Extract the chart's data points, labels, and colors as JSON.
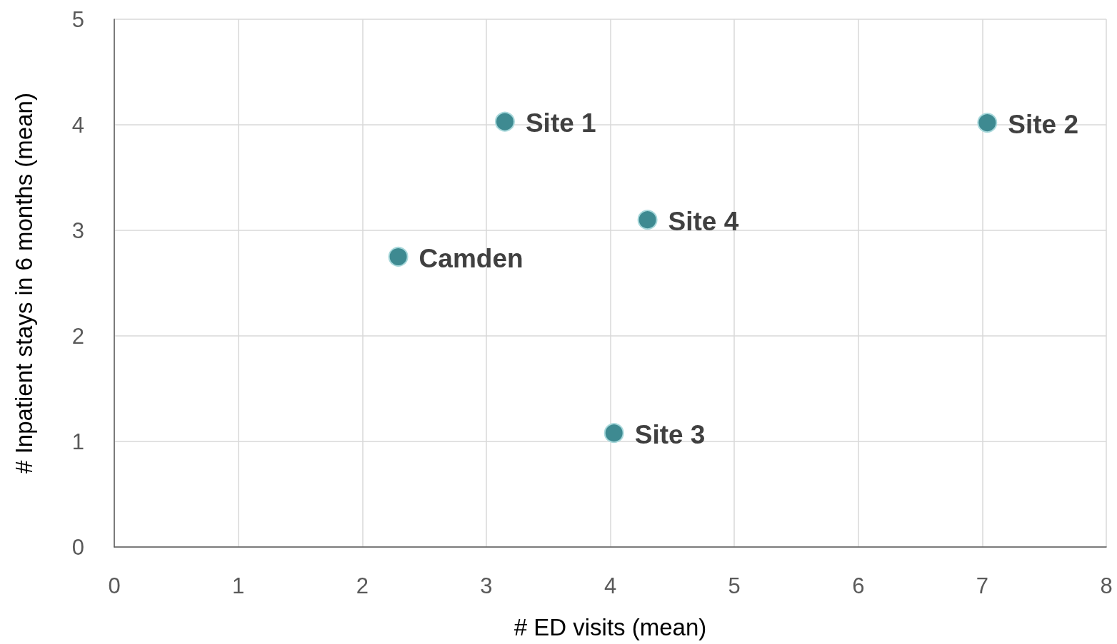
{
  "chart_data": {
    "type": "scatter",
    "xlabel": "# ED visits (mean)",
    "ylabel": "# Inpatient stays in 6 months (mean)",
    "x": [
      3.15,
      7.04,
      4.03,
      4.3,
      2.29
    ],
    "values": [
      4.03,
      4.02,
      1.08,
      3.1,
      2.75
    ],
    "color": "#3e8a91",
    "xlim": [
      0,
      8
    ],
    "xticks": [
      0,
      1,
      2,
      3,
      4,
      5,
      6,
      7,
      8
    ],
    "ylim": [
      0,
      5
    ],
    "yticks": [
      0,
      1,
      2,
      3,
      4,
      5
    ],
    "grid": true,
    "marker": "circle",
    "annotations": [
      {
        "text": "Site 1",
        "x": 3.15,
        "y": 4.03
      },
      {
        "text": "Site 2",
        "x": 7.04,
        "y": 4.02
      },
      {
        "text": "Site 3",
        "x": 4.03,
        "y": 1.08
      },
      {
        "text": "Site 4",
        "x": 4.3,
        "y": 3.1
      },
      {
        "text": "Camden",
        "x": 2.29,
        "y": 2.75
      }
    ]
  }
}
